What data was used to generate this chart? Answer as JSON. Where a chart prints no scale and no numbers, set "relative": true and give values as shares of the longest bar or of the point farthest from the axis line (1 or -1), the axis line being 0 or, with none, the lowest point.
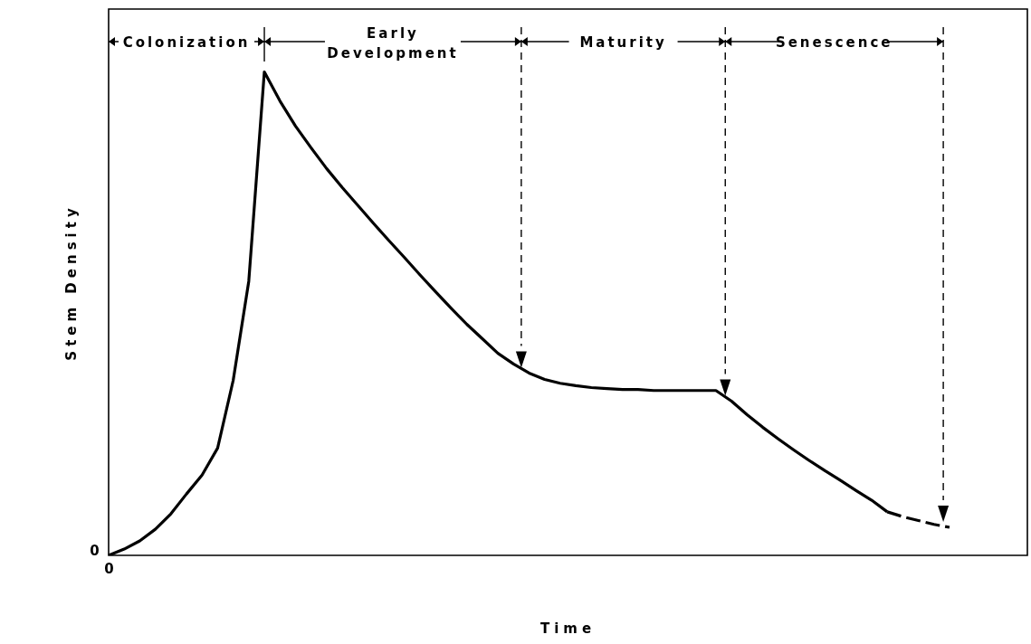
{
  "chart_data": {
    "type": "line",
    "relative": true,
    "xlabel": "Time",
    "ylabel": "Stem Density",
    "marker": "none",
    "grid": false,
    "legend": false,
    "categories": [
      null,
      null,
      null,
      null,
      null,
      null,
      null,
      null,
      null,
      null,
      null,
      null,
      null,
      null,
      null,
      null,
      null,
      null,
      null,
      null,
      null,
      null,
      null,
      null,
      null,
      null,
      null,
      null,
      null,
      null,
      null,
      null,
      null,
      null,
      null,
      null,
      null,
      null,
      null,
      null,
      null,
      null,
      null,
      null,
      null,
      null,
      null,
      null,
      null,
      null,
      null,
      null,
      null,
      null,
      null,
      null,
      null,
      null,
      null,
      null
    ],
    "series": [
      {
        "color": "#000000",
        "line_style": "solid",
        "values": [
          0,
          0.013,
          0.03,
          0.054,
          0.086,
          0.127,
          0.166,
          0.222,
          0.362,
          0.567,
          1,
          0.94,
          0.888,
          0.843,
          0.8,
          0.761,
          0.724,
          0.687,
          0.651,
          0.616,
          0.58,
          0.545,
          0.511,
          0.478,
          0.448,
          0.418,
          0.396,
          0.377,
          0.364,
          0.356,
          0.351,
          0.347,
          0.345,
          0.343,
          0.343,
          0.341,
          0.341,
          0.341,
          0.341,
          0.341,
          0.319,
          0.291,
          0.265,
          0.241,
          0.218,
          0.196,
          0.175,
          0.155,
          0.134,
          0.114,
          0.09,
          null,
          null,
          null,
          null,
          null,
          null,
          null,
          null,
          null
        ]
      },
      {
        "color": "#000000",
        "line_style": "dashed",
        "values": [
          null,
          null,
          null,
          null,
          null,
          null,
          null,
          null,
          null,
          null,
          null,
          null,
          null,
          null,
          null,
          null,
          null,
          null,
          null,
          null,
          null,
          null,
          null,
          null,
          null,
          null,
          null,
          null,
          null,
          null,
          null,
          null,
          null,
          null,
          null,
          null,
          null,
          null,
          null,
          null,
          null,
          null,
          null,
          null,
          null,
          null,
          null,
          null,
          null,
          null,
          0.09,
          0.08,
          0.072,
          0.064,
          0.058,
          null,
          null,
          null,
          null,
          null
        ]
      }
    ],
    "annotations": [
      "Colonization",
      "Early Development",
      "Maturity",
      "Senescence",
      "0",
      "0"
    ]
  }
}
